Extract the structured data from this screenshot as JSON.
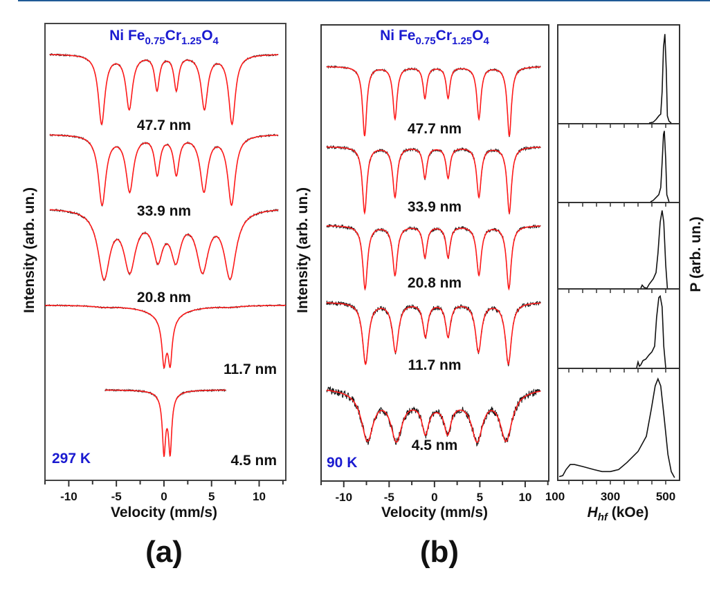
{
  "colors": {
    "fit": "#ff1a1a",
    "data": "#111111",
    "title": "#1a1ad0",
    "top_rule": "#1f5a96"
  },
  "chart_data": [
    {
      "type": "line",
      "panel_label": "(a)",
      "title_parts": [
        {
          "t": "Ni Fe"
        },
        {
          "t": "0.75",
          "sub": true
        },
        {
          "t": "Cr"
        },
        {
          "t": "1.25",
          "sub": true
        },
        {
          "t": "O"
        },
        {
          "t": "4",
          "sub": true
        }
      ],
      "temperature": "297 K",
      "xlabel": "Velocity (mm/s)",
      "ylabel": "Intensity (arb. un.)",
      "xlim": [
        -12.5,
        12.8
      ],
      "xticks": [
        -10,
        -5,
        0,
        5,
        10
      ],
      "xtick_labels": [
        "-10",
        "-5",
        "0",
        "5",
        "10"
      ],
      "series": [
        {
          "name": "47.7 nm",
          "vrange": [
            -12,
            12
          ],
          "components": [
            [
              -6.55,
              0.42,
              1
            ],
            [
              -3.65,
              0.42,
              0.78
            ],
            [
              -0.73,
              0.3,
              0.5
            ],
            [
              1.3,
              0.3,
              0.5
            ],
            [
              4.25,
              0.42,
              0.78
            ],
            [
              7.15,
              0.42,
              1
            ]
          ]
        },
        {
          "name": "33.9 nm",
          "vrange": [
            -12,
            12
          ],
          "components": [
            [
              -6.5,
              0.48,
              1
            ],
            [
              -3.6,
              0.48,
              0.8
            ],
            [
              -0.7,
              0.35,
              0.55
            ],
            [
              1.3,
              0.35,
              0.55
            ],
            [
              4.2,
              0.48,
              0.8
            ],
            [
              7.1,
              0.48,
              1
            ]
          ]
        },
        {
          "name": "20.8 nm",
          "vrange": [
            -12,
            12
          ],
          "components": [
            [
              -6.3,
              0.75,
              1
            ],
            [
              -3.6,
              0.75,
              0.85
            ],
            [
              -0.65,
              0.6,
              0.6
            ],
            [
              1.25,
              0.6,
              0.6
            ],
            [
              4.05,
              0.75,
              0.85
            ],
            [
              6.95,
              0.75,
              1
            ],
            [
              0.3,
              2.5,
              0.12
            ]
          ]
        },
        {
          "name": "11.7 nm",
          "vrange": [
            -12.5,
            12.8
          ],
          "components": [
            [
              0.0,
              0.25,
              1
            ],
            [
              0.65,
              0.25,
              1
            ],
            [
              0.3,
              1.1,
              0.35
            ],
            [
              0.3,
              3.5,
              0.12
            ],
            [
              -6.3,
              1.2,
              0.03
            ],
            [
              7.0,
              1.2,
              0.03
            ]
          ]
        },
        {
          "name": "4.5 nm",
          "vrange": [
            -6.2,
            6.5
          ],
          "components": [
            [
              0.0,
              0.2,
              1
            ],
            [
              0.65,
              0.2,
              1
            ],
            [
              0.3,
              0.8,
              0.18
            ]
          ]
        }
      ]
    },
    {
      "type": "line",
      "panel_label": "(b)",
      "title_parts": [
        {
          "t": "Ni Fe"
        },
        {
          "t": "0.75",
          "sub": true
        },
        {
          "t": "Cr"
        },
        {
          "t": "1.25",
          "sub": true
        },
        {
          "t": "O"
        },
        {
          "t": "4",
          "sub": true
        }
      ],
      "temperature": "90 K",
      "xlabel": "Velocity (mm/s)",
      "ylabel": "Intensity (arb. un.)",
      "xlim": [
        -12.5,
        12.6
      ],
      "xticks": [
        -10,
        -5,
        0,
        5,
        10
      ],
      "xtick_labels": [
        "-10",
        "-5",
        "0",
        "5",
        "10"
      ],
      "series": [
        {
          "name": "47.7 nm",
          "vrange": [
            -11.9,
            11.7
          ],
          "components": [
            [
              -7.7,
              0.28,
              1
            ],
            [
              -4.35,
              0.28,
              0.75
            ],
            [
              -1.05,
              0.25,
              0.45
            ],
            [
              1.5,
              0.25,
              0.45
            ],
            [
              4.9,
              0.28,
              0.75
            ],
            [
              8.25,
              0.28,
              1
            ]
          ]
        },
        {
          "name": "33.9 nm",
          "vrange": [
            -11.9,
            11.7
          ],
          "components": [
            [
              -7.7,
              0.3,
              1
            ],
            [
              -4.35,
              0.3,
              0.76
            ],
            [
              -1.05,
              0.27,
              0.47
            ],
            [
              1.5,
              0.27,
              0.47
            ],
            [
              4.9,
              0.3,
              0.76
            ],
            [
              8.25,
              0.3,
              1
            ]
          ]
        },
        {
          "name": "20.8 nm",
          "vrange": [
            -11.9,
            11.7
          ],
          "components": [
            [
              -7.65,
              0.32,
              1
            ],
            [
              -4.35,
              0.32,
              0.78
            ],
            [
              -1.05,
              0.28,
              0.5
            ],
            [
              1.5,
              0.28,
              0.5
            ],
            [
              4.9,
              0.32,
              0.78
            ],
            [
              8.2,
              0.32,
              1
            ]
          ]
        },
        {
          "name": "11.7 nm",
          "vrange": [
            -11.9,
            11.7
          ],
          "components": [
            [
              -7.6,
              0.4,
              1
            ],
            [
              -4.3,
              0.4,
              0.8
            ],
            [
              -1.0,
              0.33,
              0.55
            ],
            [
              1.5,
              0.33,
              0.55
            ],
            [
              4.85,
              0.4,
              0.8
            ],
            [
              8.15,
              0.4,
              1
            ]
          ]
        },
        {
          "name": "4.5 nm",
          "vrange": [
            -11.9,
            11.7
          ],
          "components": [
            [
              -7.4,
              0.8,
              1
            ],
            [
              -4.2,
              0.75,
              0.9
            ],
            [
              -1.0,
              0.45,
              0.6
            ],
            [
              1.45,
              0.45,
              0.6
            ],
            [
              4.7,
              0.75,
              0.9
            ],
            [
              7.9,
              0.8,
              1
            ],
            [
              0.3,
              5,
              0.35
            ]
          ]
        }
      ]
    },
    {
      "type": "line",
      "panel_label": "(b)",
      "xlabel_parts": [
        {
          "t": "H",
          "italic": true
        },
        {
          "t": "hf",
          "italic": true,
          "sub": true
        },
        {
          "t": " (kOe)"
        }
      ],
      "ylabel": "P (arb. un.)",
      "xlim": [
        110,
        550
      ],
      "xticks": [
        150,
        200,
        250,
        300,
        350,
        400,
        450,
        500
      ],
      "xtick_labels": [
        "100",
        "300",
        "500"
      ],
      "xtick_label_values": [
        100,
        300,
        500
      ],
      "series": [
        {
          "name": "47.7 nm",
          "points": [
            [
              440,
              0
            ],
            [
              455,
              0.01
            ],
            [
              465,
              0.04
            ],
            [
              475,
              0.08
            ],
            [
              482,
              0.1
            ],
            [
              487,
              0.35
            ],
            [
              492,
              0.85
            ],
            [
              497,
              1
            ],
            [
              502,
              0.6
            ],
            [
              506,
              0.08
            ],
            [
              512,
              0.02
            ],
            [
              520,
              0
            ]
          ]
        },
        {
          "name": "33.9 nm",
          "points": [
            [
              445,
              0
            ],
            [
              455,
              0.02
            ],
            [
              465,
              0.06
            ],
            [
              475,
              0.1
            ],
            [
              482,
              0.2
            ],
            [
              487,
              0.55
            ],
            [
              492,
              0.95
            ],
            [
              495,
              1
            ],
            [
              500,
              0.6
            ],
            [
              504,
              0.1
            ],
            [
              512,
              0
            ]
          ]
        },
        {
          "name": "20.8 nm",
          "points": [
            [
              410,
              0
            ],
            [
              415,
              0.04
            ],
            [
              422,
              0.01
            ],
            [
              432,
              0
            ],
            [
              440,
              0.05
            ],
            [
              455,
              0.12
            ],
            [
              465,
              0.2
            ],
            [
              472,
              0.45
            ],
            [
              480,
              0.85
            ],
            [
              487,
              1
            ],
            [
              493,
              0.85
            ],
            [
              500,
              0.3
            ],
            [
              506,
              0
            ]
          ]
        },
        {
          "name": "11.7 nm",
          "points": [
            [
              395,
              0
            ],
            [
              400,
              0.08
            ],
            [
              405,
              0.02
            ],
            [
              410,
              0.04
            ],
            [
              418,
              0.1
            ],
            [
              428,
              0.12
            ],
            [
              440,
              0.18
            ],
            [
              450,
              0.22
            ],
            [
              460,
              0.3
            ],
            [
              467,
              0.7
            ],
            [
              475,
              0.98
            ],
            [
              480,
              1
            ],
            [
              487,
              0.85
            ],
            [
              493,
              0.3
            ],
            [
              500,
              0
            ]
          ]
        },
        {
          "name": "4.5 nm",
          "points": [
            [
              115,
              0.03
            ],
            [
              128,
              0.04
            ],
            [
              140,
              0.1
            ],
            [
              155,
              0.15
            ],
            [
              170,
              0.15
            ],
            [
              200,
              0.13
            ],
            [
              240,
              0.1
            ],
            [
              270,
              0.08
            ],
            [
              300,
              0.08
            ],
            [
              330,
              0.1
            ],
            [
              360,
              0.17
            ],
            [
              400,
              0.28
            ],
            [
              430,
              0.43
            ],
            [
              448,
              0.7
            ],
            [
              462,
              0.93
            ],
            [
              472,
              1
            ],
            [
              482,
              0.93
            ],
            [
              495,
              0.6
            ],
            [
              508,
              0.25
            ],
            [
              520,
              0.08
            ],
            [
              532,
              0.02
            ]
          ]
        }
      ]
    }
  ]
}
